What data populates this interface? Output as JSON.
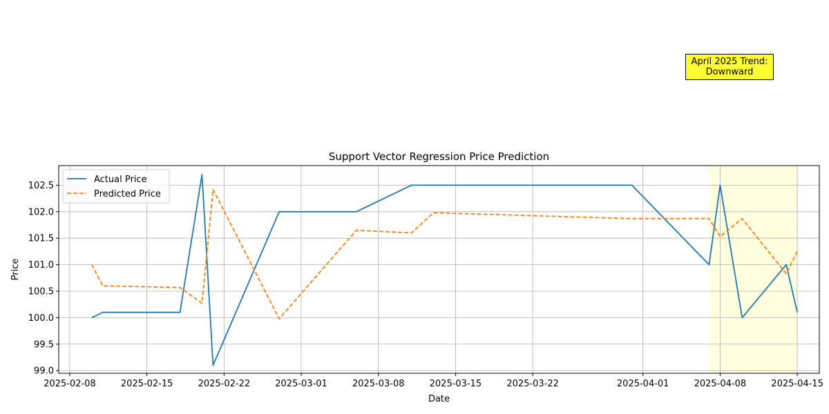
{
  "chart_data": {
    "type": "line",
    "title": "Support Vector Regression Price Prediction",
    "xlabel": "Date",
    "ylabel": "Price",
    "xlim": [
      "2025-02-07",
      "2025-04-17"
    ],
    "ylim": [
      98.95,
      102.87
    ],
    "x_ticks": [
      "2025-02-08",
      "2025-02-15",
      "2025-02-22",
      "2025-03-01",
      "2025-03-08",
      "2025-03-15",
      "2025-03-22",
      "2025-04-01",
      "2025-04-08",
      "2025-04-15"
    ],
    "y_ticks": [
      "99.0",
      "99.5",
      "100.0",
      "100.5",
      "101.0",
      "101.5",
      "102.0",
      "102.5"
    ],
    "grid": true,
    "legend_position": "top-left",
    "series": [
      {
        "name": "Actual Price",
        "color": "#1f77b4",
        "style": "solid",
        "points": [
          [
            "2025-02-10",
            100.0
          ],
          [
            "2025-02-11",
            100.1
          ],
          [
            "2025-02-18",
            100.1
          ],
          [
            "2025-02-20",
            102.7
          ],
          [
            "2025-02-21",
            99.1
          ],
          [
            "2025-02-27",
            102.0
          ],
          [
            "2025-03-06",
            102.0
          ],
          [
            "2025-03-11",
            102.5
          ],
          [
            "2025-03-31",
            102.5
          ],
          [
            "2025-04-07",
            101.0
          ],
          [
            "2025-04-08",
            102.5
          ],
          [
            "2025-04-10",
            100.0
          ],
          [
            "2025-04-14",
            101.0
          ],
          [
            "2025-04-15",
            100.1
          ]
        ]
      },
      {
        "name": "Predicted Price",
        "color": "#ff7f0e",
        "style": "dashed",
        "points": [
          [
            "2025-02-10",
            101.0
          ],
          [
            "2025-02-11",
            100.6
          ],
          [
            "2025-02-18",
            100.57
          ],
          [
            "2025-02-20",
            100.27
          ],
          [
            "2025-02-21",
            102.42
          ],
          [
            "2025-02-27",
            99.98
          ],
          [
            "2025-03-06",
            101.65
          ],
          [
            "2025-03-11",
            101.6
          ],
          [
            "2025-03-13",
            101.98
          ],
          [
            "2025-03-31",
            101.87
          ],
          [
            "2025-04-07",
            101.87
          ],
          [
            "2025-04-08",
            101.53
          ],
          [
            "2025-04-10",
            101.87
          ],
          [
            "2025-04-14",
            100.83
          ],
          [
            "2025-04-15",
            101.25
          ]
        ]
      }
    ],
    "highlight_span": {
      "start": "2025-04-07",
      "end": "2025-04-15",
      "color": "#ffffe0"
    },
    "annotation": {
      "line1": "April 2025 Trend:",
      "line2": "Downward",
      "background": "#ffff33"
    }
  }
}
